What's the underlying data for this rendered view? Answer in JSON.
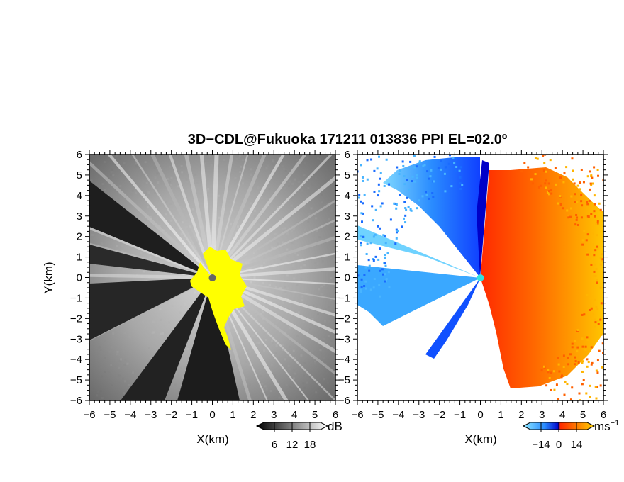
{
  "title": "3D−CDL@Fukuoka 171211 013836 PPI EL=02.0º",
  "chart_data": [
    {
      "type": "heatmap",
      "name": "reflectivity",
      "xlabel": "X(km)",
      "ylabel": "Y(km)",
      "xlim": [
        -6,
        6
      ],
      "ylim": [
        -6,
        6
      ],
      "xticks": [
        "−6",
        "−5",
        "−4",
        "−3",
        "−2",
        "−1",
        "0",
        "1",
        "2",
        "3",
        "4",
        "5",
        "6"
      ],
      "yticks": [
        "6",
        "5",
        "4",
        "3",
        "2",
        "1",
        "0",
        "−1",
        "−2",
        "−3",
        "−4",
        "−5",
        "−6"
      ],
      "colorbar": {
        "unit": "dB",
        "ticks": [
          "6",
          "12",
          "18"
        ],
        "range": [
          0,
          24
        ]
      },
      "colors": {
        "low": "#1a1a1a",
        "high": "#e8e8e8",
        "saturated": "#ffff00",
        "radar_site": "#666666"
      }
    },
    {
      "type": "heatmap",
      "name": "doppler_velocity",
      "xlabel": "X(km)",
      "xlim": [
        -6,
        6
      ],
      "ylim": [
        -6,
        6
      ],
      "xticks": [
        "−6",
        "−5",
        "−4",
        "−3",
        "−2",
        "−1",
        "0",
        "1",
        "2",
        "3",
        "4",
        "5",
        "6"
      ],
      "yticks": [
        "6",
        "5",
        "4",
        "3",
        "2",
        "1",
        "0",
        "−1",
        "−2",
        "−3",
        "−4",
        "−5",
        "−6"
      ],
      "colorbar": {
        "unit": "ms",
        "unit_sup": "−1",
        "ticks": [
          "−14",
          "0",
          "14"
        ],
        "range": [
          -28,
          28
        ]
      },
      "colors": {
        "neg_far": "#7fe0ff",
        "neg": "#1a5cff",
        "zero": "#0000c8",
        "pos": "#ff3a00",
        "pos_far": "#ffd000",
        "radar_site": "#33e0e0"
      }
    }
  ]
}
